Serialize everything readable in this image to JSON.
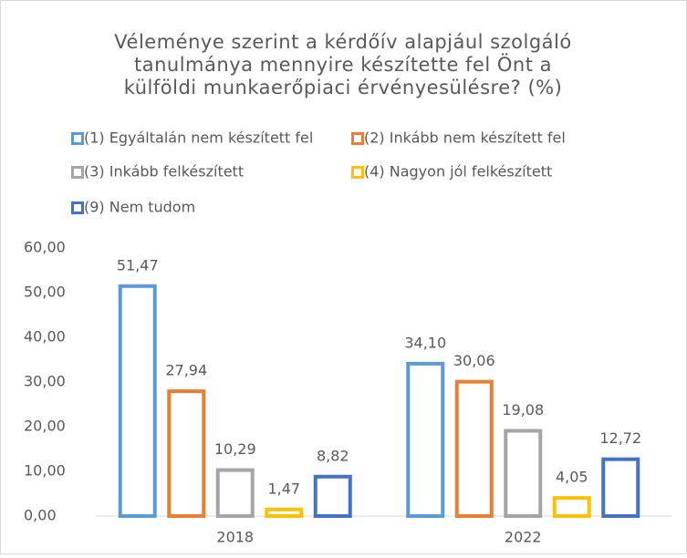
{
  "chart_data": {
    "type": "bar",
    "title": [
      "Véleménye szerint a kérdőív alapjául szolgáló",
      "tanulmánya mennyire készítette fel Önt a",
      "külföldi munkaerőpiaci érvényesülésre? (%)"
    ],
    "categories": [
      "2018",
      "2022"
    ],
    "series": [
      {
        "name": "(1) Egyáltalán nem készített fel",
        "color": "#5b9bd5",
        "values": [
          51.47,
          34.1
        ],
        "value_labels": [
          "51,47",
          "34,10"
        ]
      },
      {
        "name": "(2) Inkább nem készített fel",
        "color": "#ed7d31",
        "values": [
          27.94,
          30.06
        ],
        "value_labels": [
          "27,94",
          "30,06"
        ]
      },
      {
        "name": "(3) Inkább felkészített",
        "color": "#a5a5a5",
        "values": [
          10.29,
          19.08
        ],
        "value_labels": [
          "10,29",
          "19,08"
        ]
      },
      {
        "name": "(4) Nagyon jól felkészített",
        "color": "#ffc000",
        "values": [
          1.47,
          4.05
        ],
        "value_labels": [
          "1,47",
          "4,05"
        ]
      },
      {
        "name": "(9) Nem tudom",
        "color": "#4472c4",
        "values": [
          8.82,
          12.72
        ],
        "value_labels": [
          "8,82",
          "12,72"
        ]
      }
    ],
    "ylim": [
      0,
      60
    ],
    "yticks": [
      {
        "value": 0,
        "label": "0,00"
      },
      {
        "value": 10,
        "label": "10,00"
      },
      {
        "value": 20,
        "label": "20,00"
      },
      {
        "value": 30,
        "label": "30,00"
      },
      {
        "value": 40,
        "label": "40,00"
      },
      {
        "value": 50,
        "label": "50,00"
      },
      {
        "value": 60,
        "label": "60,00"
      }
    ],
    "grid": false,
    "legend": "top"
  }
}
